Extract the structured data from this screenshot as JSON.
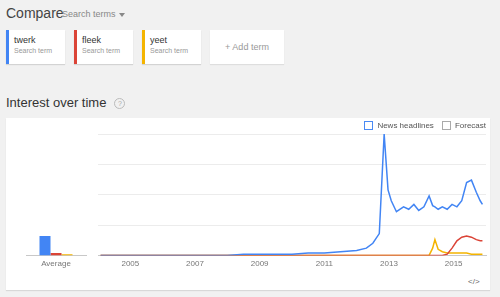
{
  "header": {
    "title": "Compare",
    "menu": "Search terms",
    "term_caption": "Search term",
    "add_term": "+ Add term"
  },
  "section": {
    "title": "Interest over time",
    "help": "?",
    "options": [
      "News headlines",
      "Forecast"
    ],
    "embed": "</>"
  },
  "chart_data": [
    {
      "type": "bar",
      "categories": [
        "Average"
      ],
      "series": [
        {
          "name": "twerk",
          "color": "#4285f4",
          "values": [
            16
          ]
        },
        {
          "name": "fleek",
          "color": "#db4437",
          "values": [
            2
          ]
        },
        {
          "name": "yeet",
          "color": "#f4b400",
          "values": [
            1
          ]
        }
      ],
      "ylim": [
        0,
        100
      ],
      "yticks": [
        0,
        25,
        50,
        75,
        100
      ],
      "grid": false,
      "tick_labels": "x"
    },
    {
      "type": "line",
      "x": [
        2004.08,
        2005,
        2006,
        2007,
        2008,
        2008.5,
        2009,
        2009.5,
        2010,
        2010.5,
        2011,
        2011.5,
        2012,
        2012.3,
        2012.5,
        2012.6,
        2012.7,
        2012.85,
        2012.97,
        2013.07,
        2013.23,
        2013.45,
        2013.61,
        2013.77,
        2013.92,
        2014.08,
        2014.24,
        2014.35,
        2014.42,
        2014.52,
        2014.65,
        2014.8,
        2014.95,
        2015.1,
        2015.25,
        2015.4,
        2015.55,
        2015.7,
        2015.82,
        2015.89
      ],
      "series": [
        {
          "name": "twerk",
          "color": "#4285f4",
          "values": [
            0,
            0,
            0,
            0,
            0,
            1,
            1,
            1,
            1,
            2,
            2,
            3,
            4,
            6,
            10,
            14,
            18,
            100,
            54,
            45,
            36,
            40,
            38,
            42,
            37,
            40,
            49,
            41,
            40,
            38,
            40,
            38,
            42,
            40,
            45,
            60,
            62,
            52,
            45,
            42
          ]
        },
        {
          "name": "fleek",
          "color": "#db4437",
          "values": [
            0,
            0,
            0,
            0,
            0,
            0,
            0,
            0,
            0,
            0,
            0,
            0,
            0,
            0,
            0,
            0,
            0,
            0,
            0,
            0,
            0,
            0,
            0,
            0,
            0,
            0,
            0,
            0,
            0,
            0,
            0,
            1,
            6,
            12,
            15,
            16,
            15,
            13,
            12,
            12
          ]
        },
        {
          "name": "yeet",
          "color": "#f4b400",
          "values": [
            0,
            0,
            0,
            0,
            0,
            0,
            0,
            0,
            0,
            0,
            0,
            0,
            0,
            0,
            0,
            0,
            0,
            0,
            0,
            0,
            0,
            0,
            0,
            0,
            0,
            0,
            0,
            6,
            13,
            5,
            3,
            2,
            2,
            2,
            2,
            2,
            1,
            1,
            1,
            1
          ]
        }
      ],
      "xlim": [
        2004,
        2016
      ],
      "xticks": [
        2005,
        2007,
        2009,
        2011,
        2013,
        2015
      ],
      "ylim": [
        0,
        100
      ],
      "yticks": [
        0,
        25,
        50,
        75,
        100
      ],
      "grid": true,
      "tick_labels": "x",
      "marker": "none",
      "line_style": "solid"
    }
  ]
}
